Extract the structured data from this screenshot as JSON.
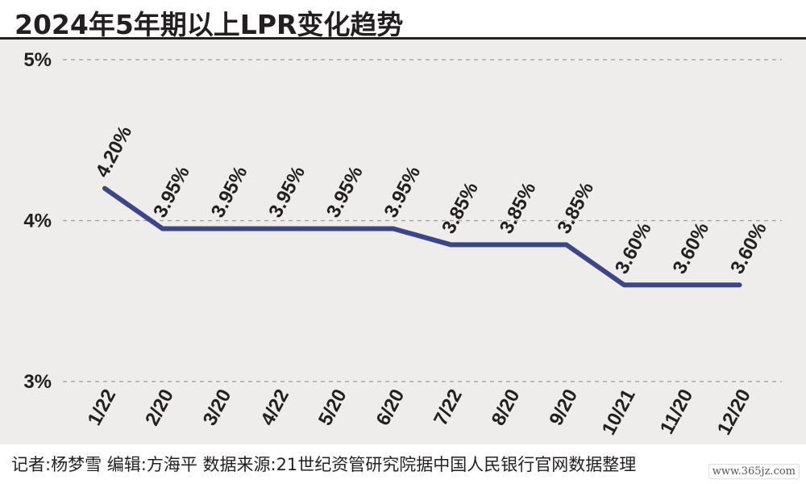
{
  "title": "2024年5年期以上LPR变化趋势",
  "source": "记者:杨梦雪  编辑:方海平  数据来源:21世纪资管研究院据中国人民银行官网数据整理",
  "watermark": "www.365jz.com",
  "colors": {
    "line": "#3b4688",
    "text": "#231f20",
    "grid": "#9a9a9a",
    "background": "#eeedec"
  },
  "chart_data": {
    "type": "line",
    "title": "2024年5年期以上LPR变化趋势",
    "xlabel": "",
    "ylabel": "",
    "categories": [
      "1/22",
      "2/20",
      "3/20",
      "4/22",
      "5/20",
      "6/20",
      "7/22",
      "8/20",
      "9/20",
      "10/21",
      "11/20",
      "12/20"
    ],
    "values": [
      4.2,
      3.95,
      3.95,
      3.95,
      3.95,
      3.95,
      3.85,
      3.85,
      3.85,
      3.6,
      3.6,
      3.6
    ],
    "data_labels": [
      "4.20%",
      "3.95%",
      "3.95%",
      "3.95%",
      "3.95%",
      "3.95%",
      "3.85%",
      "3.85%",
      "3.85%",
      "3.60%",
      "3.60%",
      "3.60%"
    ],
    "ylim": [
      3,
      5
    ],
    "yticks": [
      3,
      4,
      5
    ],
    "ytick_labels": [
      "3%",
      "4%",
      "5%"
    ],
    "grid": true,
    "grid_style": "dashed",
    "legend": "none"
  }
}
